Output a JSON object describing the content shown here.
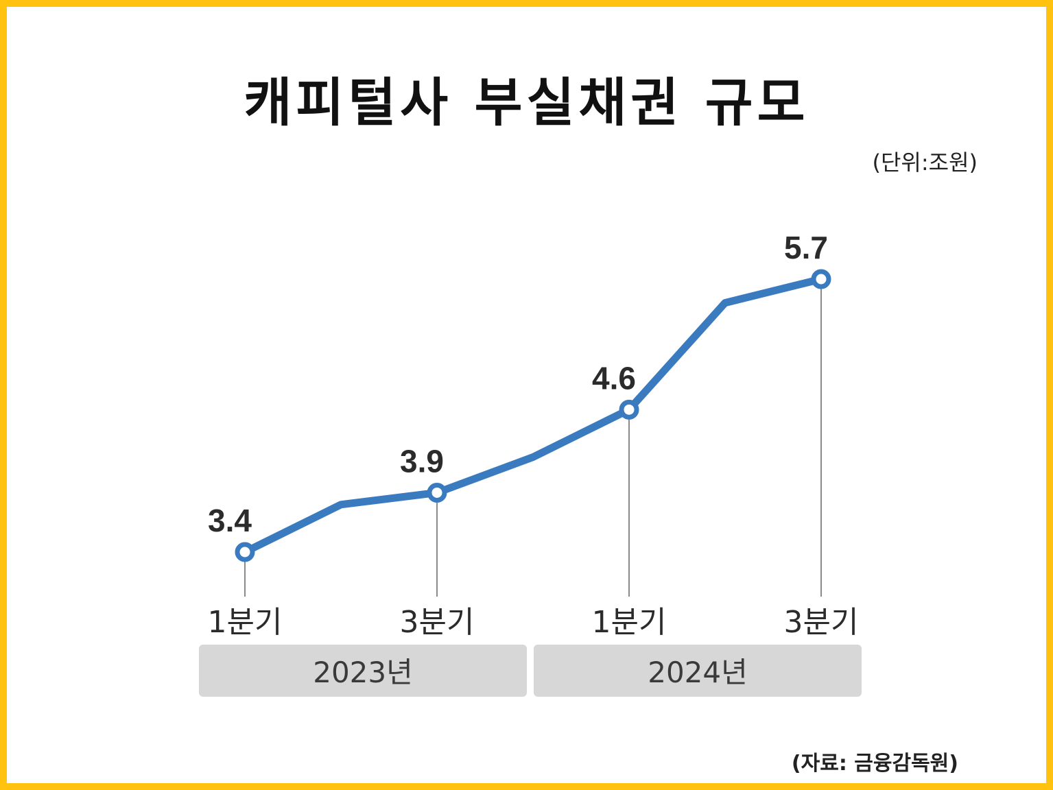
{
  "title": "캐피털사 부실채권 규모",
  "unit_label": "(단위:조원)",
  "source_label": "(자료: 금융감독원)",
  "colors": {
    "frame": "#FFC20E",
    "line": "#3A7BBF",
    "year_band": "#D7D7D7"
  },
  "chart_data": {
    "type": "line",
    "title": "캐피털사 부실채권 규모",
    "unit": "(단위:조원)",
    "x": [
      "2023 1Q",
      "2023 2Q",
      "2023 3Q",
      "2023 4Q",
      "2024 1Q",
      "2024 2Q",
      "2024 3Q"
    ],
    "tick_labels": [
      "1분기",
      "3분기",
      "1분기",
      "3분기"
    ],
    "tick_indices": [
      0,
      2,
      4,
      6
    ],
    "year_groups": [
      {
        "label": "2023년",
        "start": 0,
        "end": 3
      },
      {
        "label": "2024년",
        "start": 4,
        "end": 6
      }
    ],
    "series": [
      {
        "values": [
          3.4,
          3.8,
          3.9,
          4.2,
          4.6,
          5.5,
          5.7
        ]
      }
    ],
    "data_labels": [
      {
        "index": 0,
        "text": "3.4"
      },
      {
        "index": 2,
        "text": "3.9"
      },
      {
        "index": 4,
        "text": "4.6"
      },
      {
        "index": 6,
        "text": "5.7"
      }
    ],
    "ylim": [
      3.4,
      5.7
    ],
    "grid": false,
    "legend": "none"
  }
}
